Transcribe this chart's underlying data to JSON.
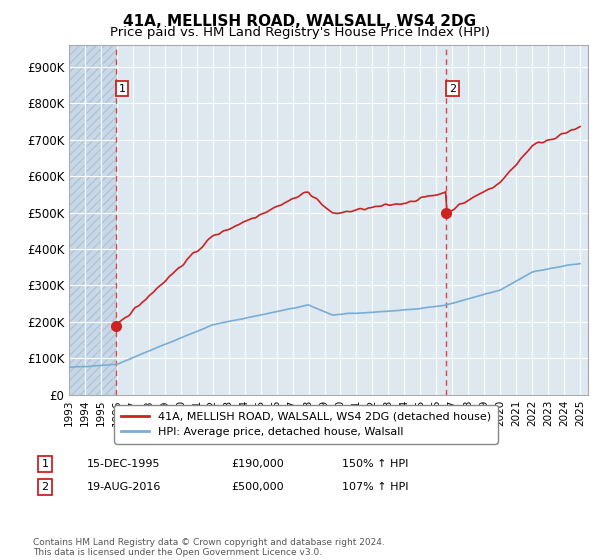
{
  "title": "41A, MELLISH ROAD, WALSALL, WS4 2DG",
  "subtitle": "Price paid vs. HM Land Registry's House Price Index (HPI)",
  "ylabel_ticks": [
    "£0",
    "£100K",
    "£200K",
    "£300K",
    "£400K",
    "£500K",
    "£600K",
    "£700K",
    "£800K",
    "£900K"
  ],
  "ytick_values": [
    0,
    100000,
    200000,
    300000,
    400000,
    500000,
    600000,
    700000,
    800000,
    900000
  ],
  "ylim": [
    0,
    960000
  ],
  "xlim_start": 1993.0,
  "xlim_end": 2025.5,
  "sale1_x": 1995.96,
  "sale1_y": 190000,
  "sale1_label": "1",
  "sale1_date": "15-DEC-1995",
  "sale1_price": "£190,000",
  "sale1_hpi": "150% ↑ HPI",
  "sale2_x": 2016.63,
  "sale2_y": 500000,
  "sale2_label": "2",
  "sale2_date": "19-AUG-2016",
  "sale2_price": "£500,000",
  "sale2_hpi": "107% ↑ HPI",
  "red_line_color": "#cc2222",
  "blue_line_color": "#7aadd4",
  "background_plot": "#dde8f0",
  "background_hatch": "#c8d8e8",
  "grid_color": "#ffffff",
  "title_fontsize": 11,
  "subtitle_fontsize": 9.5,
  "legend_label_red": "41A, MELLISH ROAD, WALSALL, WS4 2DG (detached house)",
  "legend_label_blue": "HPI: Average price, detached house, Walsall",
  "footer": "Contains HM Land Registry data © Crown copyright and database right 2024.\nThis data is licensed under the Open Government Licence v3.0."
}
